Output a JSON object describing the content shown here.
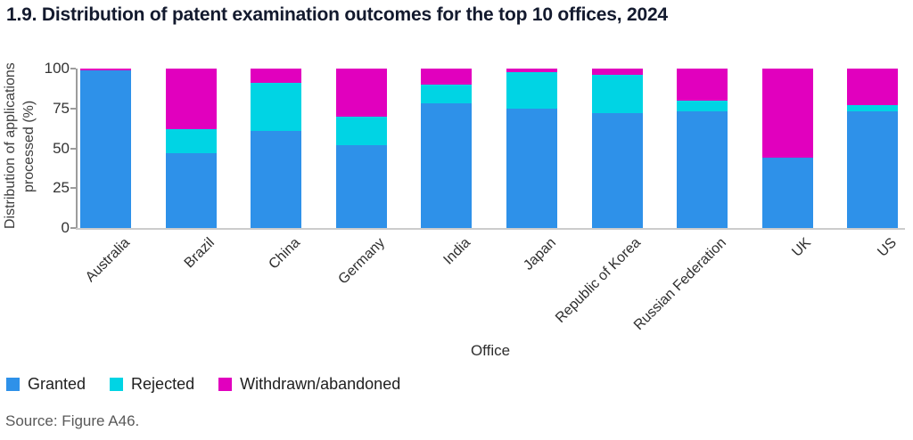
{
  "title": "1.9. Distribution of patent examination outcomes for the top 10 offices, 2024",
  "source_note": "Source: Figure A46.",
  "colors": {
    "granted": "#2E91E9",
    "rejected": "#00D4E4",
    "withdrawn": "#E100BE",
    "title_text": "#131A2E",
    "axis_text": "#333333",
    "source_text": "#595959"
  },
  "chart_data": {
    "type": "bar",
    "stacked": true,
    "title": "1.9. Distribution of patent examination outcomes for the top 10 offices, 2024",
    "xlabel": "Office",
    "ylabel": "Distribution of applications processed (%)",
    "ylim": [
      0,
      100
    ],
    "yticks": [
      0,
      25,
      50,
      75,
      100
    ],
    "grid": false,
    "legend_position": "bottom-left",
    "categories": [
      "Australia",
      "Brazil",
      "China",
      "Germany",
      "India",
      "Japan",
      "Republic of Korea",
      "Russian Federation",
      "UK",
      "US"
    ],
    "series": [
      {
        "name": "Granted",
        "color_key": "granted",
        "values": [
          99,
          47,
          61,
          52,
          78,
          75,
          72,
          73,
          44,
          73
        ]
      },
      {
        "name": "Rejected",
        "color_key": "rejected",
        "values": [
          0,
          15,
          30,
          18,
          12,
          23,
          24,
          7,
          0,
          4
        ]
      },
      {
        "name": "Withdrawn/abandoned",
        "color_key": "withdrawn",
        "values": [
          1,
          38,
          9,
          30,
          10,
          2,
          4,
          20,
          56,
          23
        ]
      }
    ]
  }
}
